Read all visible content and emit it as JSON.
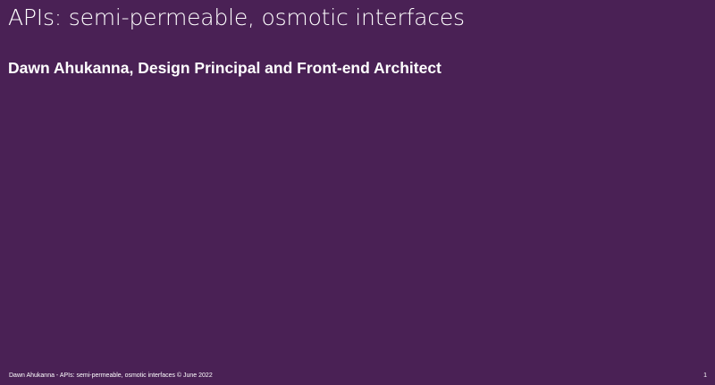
{
  "slide": {
    "title": "APIs: semi-permeable, osmotic interfaces",
    "subtitle": "Dawn Ahukanna, Design Principal and Front-end Architect",
    "footer": "Dawn Ahukanna - APIs: semi-permeable, osmotic interfaces ©  June 2022",
    "page_number": "1"
  },
  "colors": {
    "background": "#4a2155",
    "text": "#ffffff"
  }
}
